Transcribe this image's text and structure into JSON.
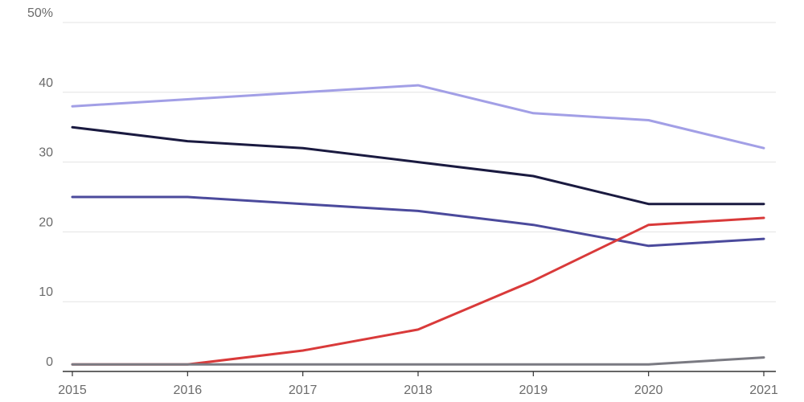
{
  "chart_data": {
    "type": "line",
    "title": "",
    "xlabel": "",
    "ylabel": "",
    "x": [
      "2015",
      "2016",
      "2017",
      "2018",
      "2019",
      "2020",
      "2021"
    ],
    "ylim": [
      0,
      50
    ],
    "y_ticks": [
      {
        "value": 0,
        "label": "0"
      },
      {
        "value": 10,
        "label": "10"
      },
      {
        "value": 20,
        "label": "20"
      },
      {
        "value": 30,
        "label": "30"
      },
      {
        "value": 40,
        "label": "40"
      },
      {
        "value": 50,
        "label": "50%"
      }
    ],
    "grid": true,
    "legend": "none",
    "series": [
      {
        "color": "#a29fe6",
        "values": [
          38,
          39,
          40,
          41,
          37,
          36,
          32
        ]
      },
      {
        "color": "#1a1a40",
        "values": [
          35,
          33,
          32,
          30,
          28,
          24,
          24
        ]
      },
      {
        "color": "#4b4a9c",
        "values": [
          25,
          25,
          24,
          23,
          21,
          18,
          19
        ]
      },
      {
        "color": "#d93a3a",
        "values": [
          1,
          1,
          3,
          6,
          13,
          21,
          22
        ]
      },
      {
        "color": "#7a7a82",
        "values": [
          1,
          1,
          1,
          1,
          1,
          1,
          2
        ]
      }
    ]
  }
}
